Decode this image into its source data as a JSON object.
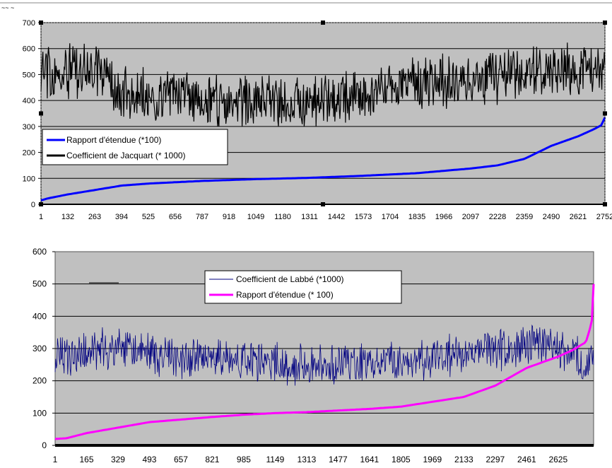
{
  "corner_label": "~~ ~",
  "chart_data": [
    {
      "type": "line",
      "title": "",
      "xlabel": "",
      "ylabel": "",
      "ylim": [
        0,
        700
      ],
      "yticks": [
        "0",
        "100",
        "200",
        "300",
        "400",
        "500",
        "600",
        "700"
      ],
      "xlim": [
        1,
        2752
      ],
      "xticks": [
        "1",
        "132",
        "263",
        "394",
        "525",
        "656",
        "787",
        "918",
        "1049",
        "1180",
        "1311",
        "1442",
        "1573",
        "1704",
        "1835",
        "1966",
        "2097",
        "2228",
        "2359",
        "2490",
        "2621",
        "2752"
      ],
      "grid": "horizontal",
      "legend_position": "center-left",
      "colors": {
        "plot_bg": "#c0c0c0"
      },
      "series": [
        {
          "name": "Rapport d'étendue (*100)",
          "color": "#0000ff",
          "style": "smooth-rank-curve",
          "points": [
            [
              1,
              15
            ],
            [
              30,
              22
            ],
            [
              131,
              38
            ],
            [
              263,
              55
            ],
            [
              394,
              72
            ],
            [
              525,
              80
            ],
            [
              787,
              90
            ],
            [
              1049,
              97
            ],
            [
              1311,
              102
            ],
            [
              1573,
              110
            ],
            [
              1835,
              120
            ],
            [
              2097,
              138
            ],
            [
              2228,
              150
            ],
            [
              2359,
              175
            ],
            [
              2490,
              225
            ],
            [
              2621,
              262
            ],
            [
              2700,
              290
            ],
            [
              2735,
              305
            ],
            [
              2752,
              335
            ]
          ]
        },
        {
          "name": "Coefficient de Jacquart (* 1000)",
          "color": "#000000",
          "style": "noisy",
          "center_points": [
            [
              1,
              510
            ],
            [
              263,
              520
            ],
            [
              394,
              430
            ],
            [
              787,
              400
            ],
            [
              1049,
              395
            ],
            [
              1311,
              395
            ],
            [
              1573,
              420
            ],
            [
              1835,
              470
            ],
            [
              2097,
              470
            ],
            [
              2228,
              495
            ],
            [
              2490,
              520
            ],
            [
              2752,
              515
            ]
          ],
          "amplitude": 85,
          "min": 300,
          "max": 645
        }
      ]
    },
    {
      "type": "line",
      "title": "",
      "xlabel": "",
      "ylabel": "",
      "ylim": [
        0,
        600
      ],
      "yticks": [
        "0",
        "100",
        "200",
        "300",
        "400",
        "500",
        "600"
      ],
      "xlim": [
        1,
        2810
      ],
      "xticks": [
        "1",
        "165",
        "329",
        "493",
        "657",
        "821",
        "985",
        "1149",
        "1313",
        "1477",
        "1641",
        "1805",
        "1969",
        "2133",
        "2297",
        "2461",
        "2625"
      ],
      "grid": "horizontal",
      "legend_position": "top-center",
      "colors": {
        "plot_bg": "#c0c0c0"
      },
      "series": [
        {
          "name": "Coefficient de Labbé (*1000)",
          "color": "#000080",
          "style": "noisy",
          "center_points": [
            [
              1,
              270
            ],
            [
              329,
              300
            ],
            [
              657,
              270
            ],
            [
              985,
              260
            ],
            [
              1313,
              245
            ],
            [
              1641,
              255
            ],
            [
              1969,
              265
            ],
            [
              2297,
              300
            ],
            [
              2461,
              310
            ],
            [
              2625,
              300
            ],
            [
              2810,
              250
            ]
          ],
          "amplitude": 55,
          "min": 140,
          "max": 415
        },
        {
          "name": "Rapport d'étendue (* 100)",
          "color": "#ff00ff",
          "style": "smooth-rank-curve",
          "points": [
            [
              1,
              20
            ],
            [
              60,
              22
            ],
            [
              165,
              38
            ],
            [
              329,
              55
            ],
            [
              493,
              72
            ],
            [
              657,
              80
            ],
            [
              821,
              88
            ],
            [
              985,
              95
            ],
            [
              1149,
              100
            ],
            [
              1313,
              103
            ],
            [
              1477,
              108
            ],
            [
              1641,
              113
            ],
            [
              1805,
              120
            ],
            [
              1969,
              135
            ],
            [
              2133,
              150
            ],
            [
              2297,
              185
            ],
            [
              2461,
              240
            ],
            [
              2625,
              275
            ],
            [
              2700,
              295
            ],
            [
              2770,
              320
            ],
            [
              2800,
              380
            ],
            [
              2810,
              500
            ]
          ]
        }
      ]
    }
  ]
}
